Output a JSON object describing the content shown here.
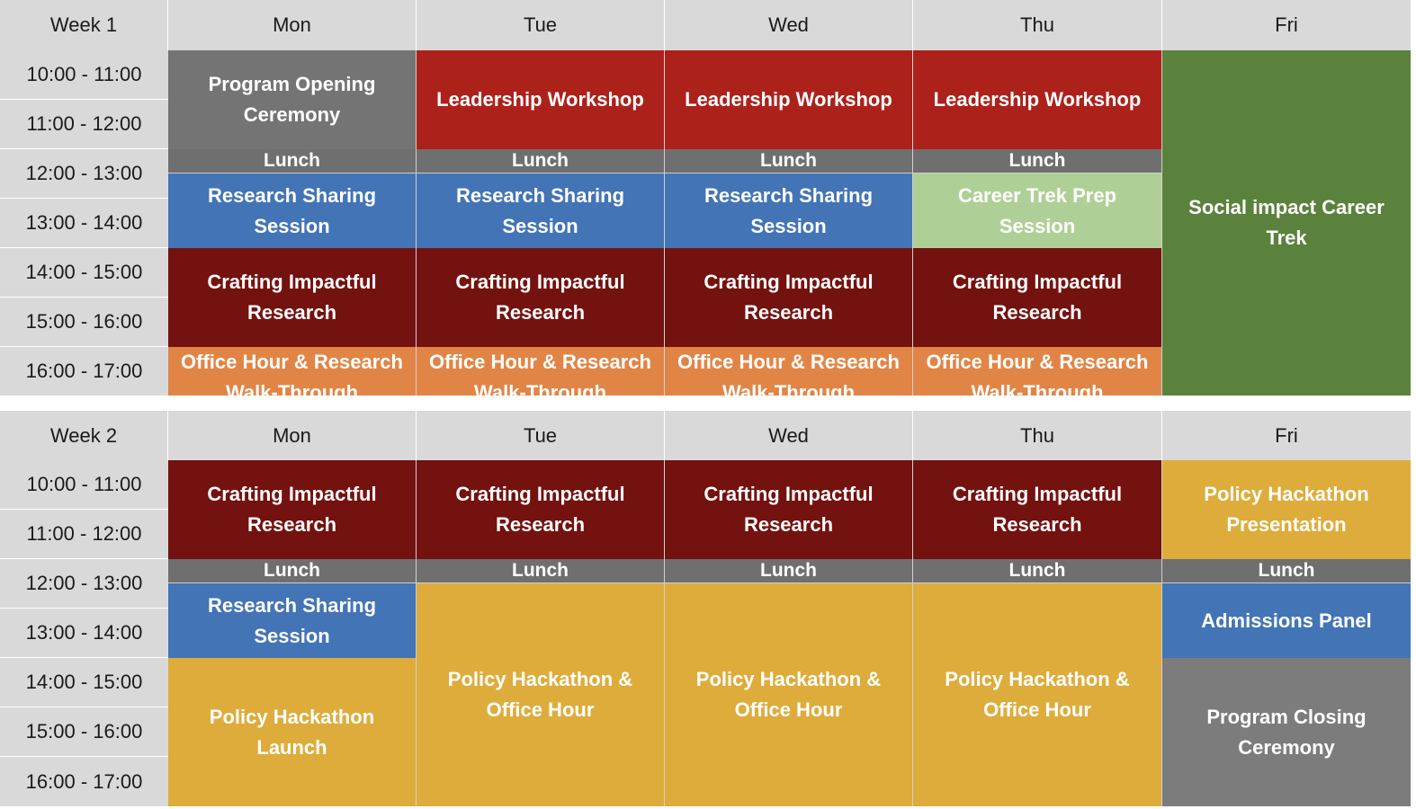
{
  "weeks": [
    {
      "label": "Week 1",
      "days": [
        "Mon",
        "Tue",
        "Wed",
        "Thu",
        "Fri"
      ],
      "times": [
        "10:00 - 11:00",
        "11:00 - 12:00",
        "12:00 - 13:00",
        "13:00 - 14:00",
        "14:00 - 15:00",
        "15:00 - 16:00",
        "16:00 - 17:00"
      ],
      "events": {
        "mon_opening": "Program Opening Ceremony",
        "tue_leadership": "Leadership Workshop",
        "wed_leadership": "Leadership Workshop",
        "thu_leadership": "Leadership Workshop",
        "lunch": "Lunch",
        "mon_research_sharing": "Research Sharing Session",
        "tue_research_sharing": "Research Sharing Session",
        "wed_research_sharing": "Research Sharing Session",
        "thu_career_prep": "Career Trek Prep Session",
        "crafting": "Crafting Impactful Research",
        "office_hour": "Office Hour & Research Walk-Through",
        "fri_career_trek": "Social impact Career Trek"
      }
    },
    {
      "label": "Week 2",
      "days": [
        "Mon",
        "Tue",
        "Wed",
        "Thu",
        "Fri"
      ],
      "times": [
        "10:00 - 11:00",
        "11:00 - 12:00",
        "12:00 - 13:00",
        "13:00 - 14:00",
        "14:00 - 15:00",
        "15:00 - 16:00",
        "16:00 - 17:00"
      ],
      "events": {
        "crafting": "Crafting Impactful Research",
        "fri_hackathon_presentation": "Policy Hackathon Presentation",
        "lunch": "Lunch",
        "mon_research_sharing": "Research Sharing Session",
        "hackathon_office_hour": "Policy Hackathon & Office Hour",
        "fri_admissions": "Admissions Panel",
        "mon_hackathon_launch": "Policy Hackathon Launch",
        "fri_closing": "Program Closing Ceremony"
      }
    }
  ],
  "colors": {
    "opening_ceremony": "#747474",
    "leadership": "#ad211b",
    "research_sharing": "#4374b5",
    "crafting": "#73120f",
    "office_hour": "#e18546",
    "career_prep": "#aed096",
    "career_trek": "#5a823c",
    "hackathon": "#deac3b",
    "lunch": "#6f6f6f",
    "closing_ceremony": "#7c7c7c"
  }
}
